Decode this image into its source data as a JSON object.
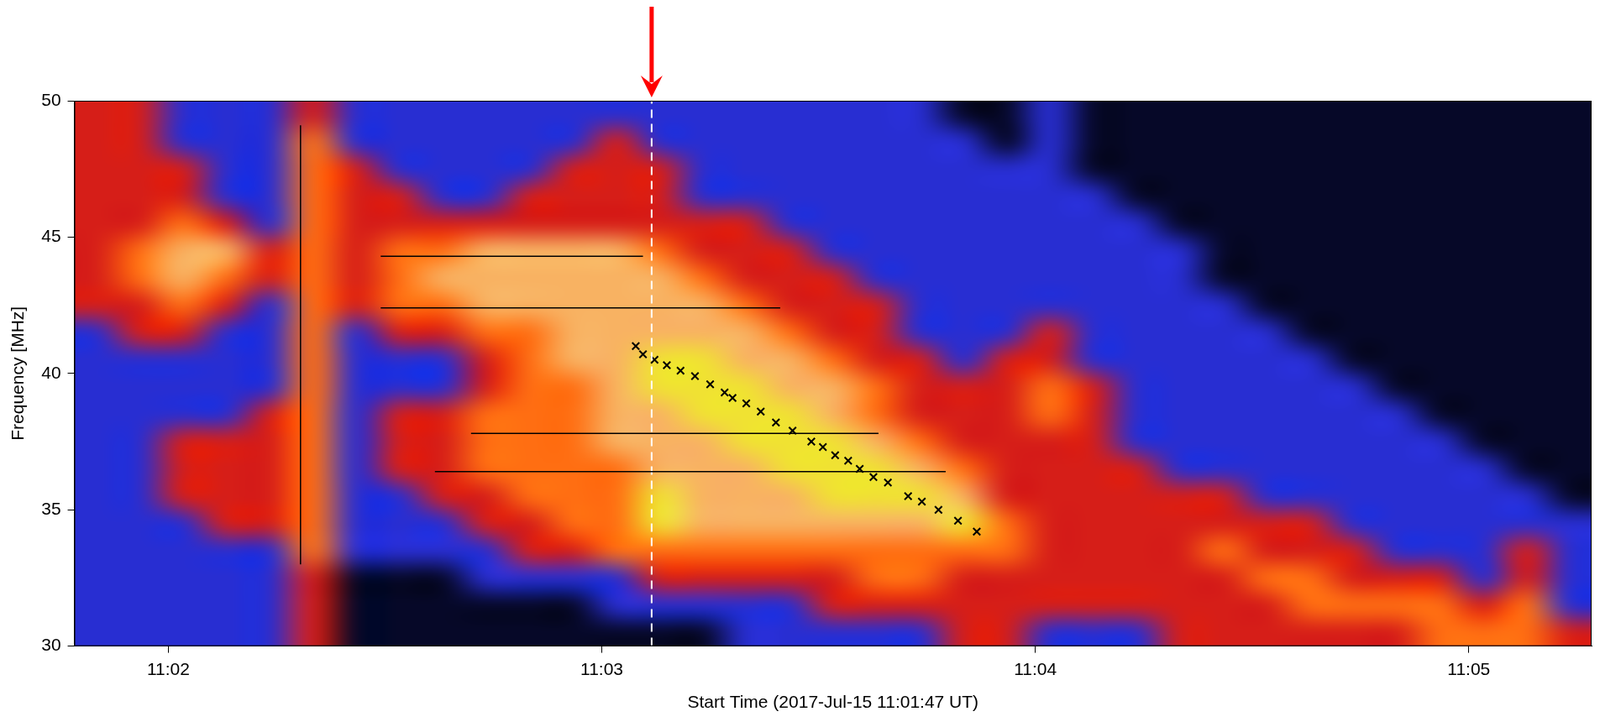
{
  "chart_data": {
    "type": "heatmap",
    "x_label": "Start Time (2017-Jul-15 11:01:47 UT)",
    "y_label": "Frequency [MHz]",
    "xlim": [
      107,
      317
    ],
    "ylim": [
      30,
      50
    ],
    "xticks": [
      {
        "value": 120,
        "label": "11:02"
      },
      {
        "value": 180,
        "label": "11:03"
      },
      {
        "value": 240,
        "label": "11:04"
      },
      {
        "value": 300,
        "label": "11:05"
      }
    ],
    "yticks": [
      30,
      35,
      40,
      45,
      50
    ],
    "grid": false,
    "time_bins": [
      107,
      113,
      119,
      125,
      131,
      137,
      143,
      149,
      155,
      161,
      167,
      173,
      179,
      185,
      191,
      197,
      203,
      209,
      215,
      221,
      227,
      233,
      239,
      245,
      251,
      257,
      263,
      269,
      275,
      281,
      287,
      293,
      299,
      305,
      311,
      317
    ],
    "freq_bins": [
      30,
      31,
      32,
      33,
      34,
      35,
      36,
      37,
      38,
      39,
      40,
      41,
      42,
      43,
      44,
      45,
      46,
      47,
      48,
      49,
      50
    ],
    "zlim": [
      0,
      5
    ],
    "intensity": [
      [
        1,
        1,
        1,
        1,
        1,
        2,
        0,
        0,
        0,
        0,
        0,
        0,
        0,
        0,
        0,
        1,
        1,
        1,
        1,
        1,
        2,
        2,
        1,
        1,
        1,
        2,
        2,
        2,
        2,
        2,
        2,
        3,
        3,
        3,
        2
      ],
      [
        1,
        1,
        1,
        1,
        1,
        2,
        0,
        0,
        0,
        0,
        0,
        0,
        1,
        1,
        1,
        1,
        1,
        2,
        2,
        2,
        2,
        2,
        2,
        2,
        2,
        2,
        2,
        2,
        3,
        3,
        3,
        3,
        2,
        3,
        1
      ],
      [
        1,
        1,
        1,
        1,
        1,
        2,
        0,
        0,
        0,
        1,
        1,
        1,
        1,
        2,
        2,
        2,
        2,
        2,
        3,
        3,
        2,
        2,
        2,
        2,
        2,
        2,
        2,
        3,
        3,
        2,
        2,
        2,
        1,
        2,
        1
      ],
      [
        1,
        1,
        1,
        1,
        1,
        3,
        1,
        1,
        1,
        1,
        2,
        2,
        3,
        3,
        3,
        3,
        3,
        3,
        3,
        3,
        3,
        3,
        2,
        2,
        2,
        2,
        3,
        2,
        2,
        2,
        1,
        1,
        1,
        2,
        1
      ],
      [
        1,
        1,
        1,
        2,
        2,
        3,
        1,
        1,
        1,
        2,
        2,
        3,
        3,
        5,
        4,
        4,
        4,
        4,
        4,
        4,
        5,
        3,
        2,
        2,
        2,
        2,
        2,
        2,
        2,
        1,
        1,
        1,
        1,
        1,
        1
      ],
      [
        1,
        1,
        2,
        2,
        2,
        3,
        1,
        1,
        2,
        2,
        3,
        3,
        3,
        5,
        4,
        4,
        4,
        5,
        5,
        5,
        4,
        2,
        2,
        2,
        2,
        2,
        2,
        1,
        1,
        1,
        1,
        1,
        1,
        1,
        0
      ],
      [
        1,
        1,
        2,
        2,
        2,
        3,
        1,
        2,
        2,
        3,
        3,
        3,
        3,
        4,
        4,
        4,
        5,
        5,
        5,
        4,
        3,
        2,
        2,
        2,
        2,
        1,
        1,
        1,
        1,
        1,
        1,
        1,
        1,
        0,
        0
      ],
      [
        1,
        1,
        2,
        2,
        2,
        3,
        1,
        2,
        2,
        3,
        3,
        3,
        4,
        4,
        4,
        5,
        5,
        5,
        4,
        3,
        2,
        2,
        2,
        2,
        1,
        1,
        1,
        1,
        1,
        1,
        1,
        1,
        0,
        0,
        0
      ],
      [
        1,
        1,
        1,
        1,
        2,
        3,
        1,
        2,
        2,
        3,
        3,
        3,
        4,
        4,
        5,
        5,
        5,
        4,
        3,
        2,
        2,
        2,
        3,
        2,
        1,
        1,
        1,
        1,
        1,
        1,
        1,
        0,
        0,
        0,
        0
      ],
      [
        1,
        1,
        1,
        1,
        1,
        3,
        1,
        1,
        1,
        2,
        3,
        3,
        4,
        5,
        5,
        5,
        4,
        4,
        3,
        2,
        2,
        2,
        3,
        2,
        1,
        1,
        1,
        1,
        1,
        1,
        0,
        0,
        0,
        0,
        0
      ],
      [
        1,
        1,
        1,
        1,
        1,
        3,
        1,
        1,
        1,
        2,
        3,
        4,
        4,
        5,
        5,
        4,
        4,
        3,
        2,
        2,
        1,
        2,
        2,
        1,
        1,
        1,
        1,
        1,
        1,
        0,
        0,
        0,
        0,
        0,
        0
      ],
      [
        1,
        2,
        2,
        1,
        1,
        3,
        1,
        2,
        2,
        3,
        3,
        4,
        4,
        4,
        4,
        4,
        3,
        2,
        2,
        1,
        1,
        1,
        2,
        1,
        1,
        1,
        1,
        1,
        0,
        0,
        0,
        0,
        0,
        0,
        0
      ],
      [
        2,
        2,
        3,
        2,
        1,
        3,
        2,
        3,
        3,
        4,
        4,
        4,
        4,
        4,
        4,
        3,
        2,
        2,
        2,
        1,
        1,
        1,
        1,
        1,
        1,
        1,
        1,
        0,
        0,
        0,
        0,
        0,
        0,
        0,
        0
      ],
      [
        2,
        3,
        4,
        3,
        2,
        3,
        2,
        3,
        4,
        4,
        4,
        4,
        4,
        4,
        3,
        2,
        2,
        2,
        1,
        1,
        1,
        1,
        1,
        1,
        1,
        1,
        0,
        0,
        0,
        0,
        0,
        0,
        0,
        0,
        0
      ],
      [
        2,
        3,
        4,
        4,
        2,
        3,
        2,
        3,
        3,
        4,
        4,
        4,
        4,
        3,
        2,
        2,
        2,
        1,
        1,
        1,
        1,
        1,
        1,
        1,
        1,
        1,
        0,
        0,
        0,
        0,
        0,
        0,
        0,
        0,
        0
      ],
      [
        2,
        2,
        3,
        2,
        1,
        3,
        2,
        2,
        2,
        2,
        2,
        2,
        2,
        2,
        2,
        2,
        1,
        1,
        1,
        1,
        1,
        1,
        1,
        1,
        1,
        0,
        0,
        0,
        0,
        0,
        0,
        0,
        0,
        0,
        0
      ],
      [
        2,
        2,
        2,
        1,
        1,
        3,
        2,
        2,
        1,
        1,
        2,
        2,
        2,
        2,
        1,
        1,
        1,
        1,
        1,
        1,
        1,
        1,
        1,
        1,
        0,
        0,
        0,
        0,
        0,
        0,
        0,
        0,
        0,
        0,
        0
      ],
      [
        2,
        2,
        2,
        1,
        1,
        3,
        2,
        1,
        1,
        1,
        1,
        2,
        2,
        2,
        1,
        1,
        1,
        1,
        1,
        1,
        1,
        1,
        1,
        0,
        0,
        0,
        0,
        0,
        0,
        0,
        0,
        0,
        0,
        0,
        0
      ],
      [
        2,
        2,
        1,
        1,
        1,
        3,
        1,
        1,
        1,
        1,
        1,
        1,
        2,
        1,
        1,
        1,
        1,
        1,
        1,
        1,
        1,
        0,
        1,
        0,
        0,
        0,
        0,
        0,
        0,
        0,
        0,
        0,
        0,
        0,
        0
      ],
      [
        2,
        2,
        1,
        1,
        1,
        2,
        1,
        1,
        1,
        1,
        1,
        1,
        1,
        1,
        1,
        1,
        1,
        1,
        1,
        1,
        0,
        0,
        1,
        0,
        0,
        0,
        0,
        0,
        0,
        0,
        0,
        0,
        0,
        0,
        0
      ]
    ],
    "markers": {
      "type": "scatter",
      "marker": "x",
      "color": "#000000",
      "x": [
        184.7,
        185.7,
        187.3,
        189.0,
        190.9,
        192.9,
        195.0,
        197.0,
        198.1,
        200.0,
        202.0,
        204.1,
        206.4,
        209.0,
        210.6,
        212.3,
        214.1,
        215.7,
        217.6,
        219.6,
        222.4,
        224.3,
        226.6,
        229.3,
        231.9
      ],
      "y": [
        41.0,
        40.7,
        40.5,
        40.3,
        40.1,
        39.9,
        39.6,
        39.3,
        39.1,
        38.9,
        38.6,
        38.2,
        37.9,
        37.5,
        37.3,
        37.0,
        36.8,
        36.5,
        36.2,
        36.0,
        35.5,
        35.3,
        35.0,
        34.6,
        34.2
      ]
    },
    "lines": [
      {
        "x": [
          149.4,
          185.7
        ],
        "y": [
          44.3,
          44.3
        ],
        "color": "#000000",
        "line_style": "solid"
      },
      {
        "x": [
          149.4,
          204.7
        ],
        "y": [
          42.4,
          42.4
        ],
        "color": "#000000",
        "line_style": "solid"
      },
      {
        "x": [
          161.9,
          218.3
        ],
        "y": [
          37.8,
          37.8
        ],
        "color": "#000000",
        "line_style": "solid"
      },
      {
        "x": [
          156.9,
          227.6
        ],
        "y": [
          36.4,
          36.4
        ],
        "color": "#000000",
        "line_style": "solid"
      },
      {
        "x": [
          138.3,
          138.3
        ],
        "y": [
          33.0,
          49.1
        ],
        "color": "#000000",
        "line_style": "solid"
      },
      {
        "x": [
          186.9,
          186.9
        ],
        "y": [
          30,
          50
        ],
        "color": "#ffffff",
        "line_style": "dashed"
      }
    ],
    "annotations": [
      {
        "type": "arrow",
        "x": 186.9,
        "color": "#ff0000"
      }
    ]
  }
}
